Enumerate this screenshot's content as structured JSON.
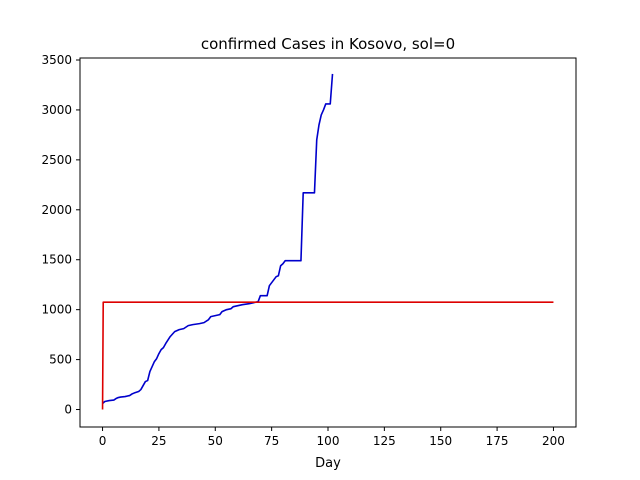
{
  "chart_data": {
    "type": "line",
    "title": "confirmed Cases in Kosovo, sol=0",
    "xlabel": "Day",
    "ylabel": "",
    "xlim": [
      -10,
      210
    ],
    "ylim": [
      -175,
      3520
    ],
    "xticks": [
      0,
      25,
      50,
      75,
      100,
      125,
      150,
      175,
      200
    ],
    "yticks": [
      0,
      500,
      1000,
      1500,
      2000,
      2500,
      3000,
      3500
    ],
    "grid": false,
    "legend": "none",
    "series": [
      {
        "color": "#0000cc",
        "x": [
          0,
          1,
          3,
          5,
          6,
          7,
          8,
          10,
          12,
          13,
          14,
          16,
          17,
          19,
          20,
          21,
          22,
          23,
          24,
          25,
          26,
          27,
          28,
          30,
          32,
          34,
          36,
          38,
          40,
          43,
          45,
          47,
          48,
          50,
          52,
          53,
          55,
          57,
          58,
          60,
          62,
          65,
          67,
          69,
          70,
          73,
          74,
          75,
          76,
          77,
          78,
          79,
          80,
          81,
          82,
          85,
          87,
          88,
          89,
          90,
          91,
          93,
          94,
          95,
          96,
          97,
          98,
          99,
          100,
          101,
          102
        ],
        "y": [
          60,
          80,
          90,
          95,
          110,
          120,
          125,
          130,
          140,
          155,
          165,
          180,
          200,
          280,
          290,
          380,
          430,
          480,
          510,
          560,
          600,
          620,
          660,
          730,
          780,
          800,
          810,
          840,
          850,
          860,
          870,
          900,
          930,
          940,
          950,
          980,
          1000,
          1010,
          1030,
          1040,
          1050,
          1060,
          1070,
          1080,
          1140,
          1140,
          1240,
          1270,
          1300,
          1330,
          1340,
          1440,
          1460,
          1490,
          1490,
          1490,
          1490,
          1490,
          2170,
          2170,
          2170,
          2170,
          2170,
          2700,
          2850,
          2950,
          3000,
          3060,
          3060,
          3060,
          3360
        ]
      },
      {
        "color": "#dd0000",
        "x": [
          0,
          0.3,
          200
        ],
        "y": [
          0,
          1075,
          1075
        ]
      }
    ]
  }
}
